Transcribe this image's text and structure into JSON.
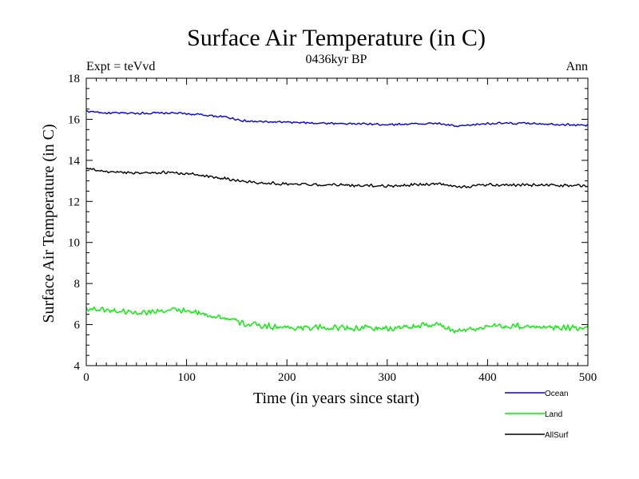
{
  "chart_data": {
    "type": "line",
    "title": "Surface Air Temperature (in C)",
    "subtitle": "0436kyr BP",
    "left_label": "Expt = teVvd",
    "right_label": "Ann",
    "xlabel": "Time (in years since start)",
    "ylabel": "Surface Air Temperature (in C)",
    "xlim": [
      0,
      500
    ],
    "ylim": [
      4,
      18
    ],
    "xticks": [
      0,
      100,
      200,
      300,
      400,
      500
    ],
    "yticks": [
      4,
      6,
      8,
      10,
      12,
      14,
      16,
      18
    ],
    "grid": false,
    "legend_position": "bottom-right, below plot",
    "series": [
      {
        "name": "Ocean",
        "color": "#0000dd",
        "keypoints": [
          [
            0,
            16.4
          ],
          [
            20,
            16.3
          ],
          [
            50,
            16.3
          ],
          [
            90,
            16.3
          ],
          [
            120,
            16.2
          ],
          [
            140,
            16.1
          ],
          [
            160,
            15.9
          ],
          [
            200,
            15.85
          ],
          [
            250,
            15.8
          ],
          [
            300,
            15.75
          ],
          [
            350,
            15.8
          ],
          [
            370,
            15.65
          ],
          [
            400,
            15.8
          ],
          [
            450,
            15.8
          ],
          [
            500,
            15.7
          ]
        ],
        "noise": 0.06
      },
      {
        "name": "Land",
        "color": "#00ee00",
        "keypoints": [
          [
            0,
            6.8
          ],
          [
            20,
            6.7
          ],
          [
            50,
            6.6
          ],
          [
            90,
            6.7
          ],
          [
            120,
            6.5
          ],
          [
            140,
            6.3
          ],
          [
            160,
            6.0
          ],
          [
            200,
            5.85
          ],
          [
            250,
            5.85
          ],
          [
            300,
            5.8
          ],
          [
            350,
            6.0
          ],
          [
            370,
            5.7
          ],
          [
            400,
            5.9
          ],
          [
            450,
            5.9
          ],
          [
            500,
            5.85
          ]
        ],
        "noise": 0.17
      },
      {
        "name": "AllSurf",
        "color": "#000000",
        "keypoints": [
          [
            0,
            13.6
          ],
          [
            20,
            13.45
          ],
          [
            50,
            13.4
          ],
          [
            90,
            13.4
          ],
          [
            120,
            13.25
          ],
          [
            140,
            13.1
          ],
          [
            160,
            12.95
          ],
          [
            200,
            12.85
          ],
          [
            250,
            12.8
          ],
          [
            300,
            12.75
          ],
          [
            350,
            12.85
          ],
          [
            370,
            12.7
          ],
          [
            400,
            12.8
          ],
          [
            450,
            12.8
          ],
          [
            500,
            12.75
          ]
        ],
        "noise": 0.08
      }
    ]
  }
}
